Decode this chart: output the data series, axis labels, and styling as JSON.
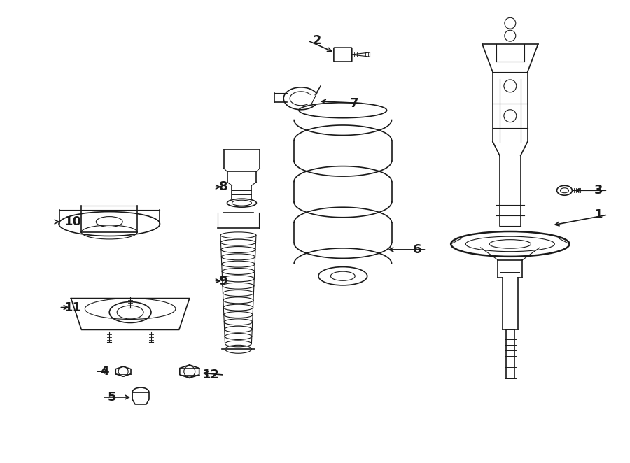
{
  "bg_color": "#ffffff",
  "line_color": "#1a1a1a",
  "lw_thin": 0.8,
  "lw_med": 1.2,
  "lw_thick": 1.8,
  "label_fontsize": 13,
  "figsize": [
    9.0,
    6.62
  ],
  "dpi": 100
}
